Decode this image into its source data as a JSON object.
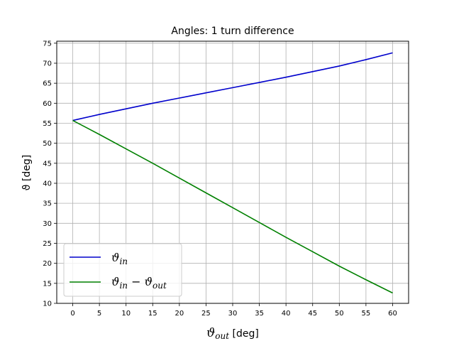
{
  "chart_data": {
    "type": "line",
    "title": "Angles: 1 turn difference",
    "xlabel": "ϑout [deg]",
    "xlabel_main": "ϑ",
    "xlabel_sub": "out",
    "xlabel_unit": " [deg]",
    "ylabel": "ϑ [deg]",
    "xlim": [
      -3,
      63
    ],
    "ylim": [
      10.0,
      75.5
    ],
    "xticks": [
      0,
      5,
      10,
      15,
      20,
      25,
      30,
      35,
      40,
      45,
      50,
      55,
      60
    ],
    "yticks": [
      10,
      15,
      20,
      25,
      30,
      35,
      40,
      45,
      50,
      55,
      60,
      65,
      70,
      75
    ],
    "grid": true,
    "legend_placement": "lower-left",
    "series": [
      {
        "name": "ϑin",
        "name_main": "ϑ",
        "name_sub": "in",
        "color": "#0000cc",
        "x": [
          0,
          5,
          10,
          15,
          20,
          25,
          30,
          35,
          40,
          45,
          50,
          55,
          60
        ],
        "values": [
          55.7,
          57.2,
          58.6,
          60.0,
          61.3,
          62.6,
          63.9,
          65.2,
          66.5,
          67.9,
          69.3,
          70.9,
          72.6
        ]
      },
      {
        "name": "ϑin − ϑout",
        "name_parts": [
          "ϑ",
          "in",
          " − ϑ",
          "out"
        ],
        "color": "#008000",
        "x": [
          0,
          5,
          10,
          15,
          20,
          25,
          30,
          35,
          40,
          45,
          50,
          55,
          60
        ],
        "values": [
          55.7,
          52.2,
          48.6,
          45.0,
          41.3,
          37.6,
          33.9,
          30.2,
          26.5,
          22.9,
          19.3,
          15.9,
          12.6
        ]
      }
    ]
  }
}
